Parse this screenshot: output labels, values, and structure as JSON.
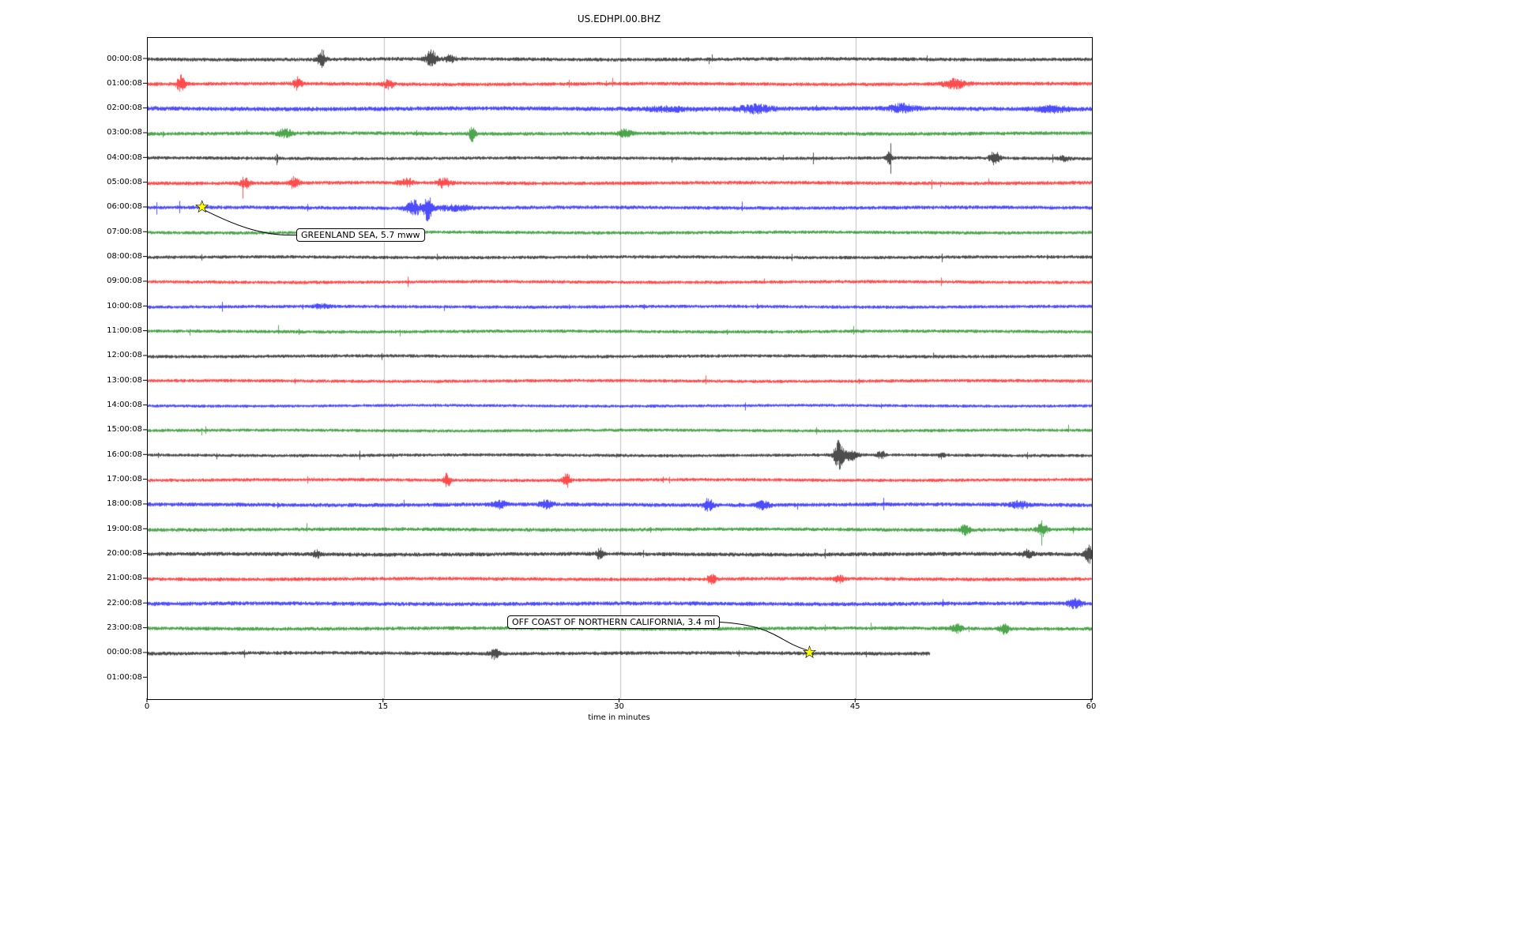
{
  "title": "US.EDHPI.00.BHZ",
  "axes": {
    "xlabel": "time in minutes",
    "x_ticks": [
      0,
      15,
      30,
      45,
      60
    ],
    "grid_minutes": [
      15,
      30,
      45
    ]
  },
  "colors": {
    "trace_black": "#000000",
    "trace_red": "#ff0000",
    "trace_blue": "#0000ff",
    "trace_green": "#008000",
    "grid": "#b0b0b0",
    "event_marker": "#ffff00",
    "background": "#ffffff"
  },
  "chart_data": {
    "type": "line",
    "title": "US.EDHPI.00.BHZ",
    "xlabel": "time in minutes",
    "x_range_minutes": [
      0,
      60
    ],
    "x_ticks": [
      0,
      15,
      30,
      45,
      60
    ],
    "grid_minutes": [
      15,
      30,
      45
    ],
    "row_spacing": "1 hour per row",
    "rows": [
      {
        "label": "00:00:08",
        "color": "#000000",
        "amp": 2.2,
        "bursts": [
          {
            "m": 11.0,
            "a": 6,
            "w": 0.3
          },
          {
            "m": 18.0,
            "a": 9,
            "w": 0.35
          },
          {
            "m": 19.2,
            "a": 4,
            "w": 0.3
          }
        ]
      },
      {
        "label": "01:00:08",
        "color": "#ff0000",
        "amp": 2.2,
        "bursts": [
          {
            "m": 2.1,
            "a": 10,
            "w": 0.25
          },
          {
            "m": 9.5,
            "a": 7,
            "w": 0.25
          },
          {
            "m": 15.3,
            "a": 5,
            "w": 0.3
          },
          {
            "m": 51.3,
            "a": 5,
            "w": 0.7
          }
        ]
      },
      {
        "label": "02:00:08",
        "color": "#0000ff",
        "amp": 2.6,
        "bursts": [
          {
            "m": 33.0,
            "a": 2,
            "w": 1.5
          },
          {
            "m": 38.6,
            "a": 4,
            "w": 1.0
          },
          {
            "m": 47.9,
            "a": 4,
            "w": 0.8
          },
          {
            "m": 57.4,
            "a": 3,
            "w": 1.0
          }
        ]
      },
      {
        "label": "03:00:08",
        "color": "#008000",
        "amp": 2.2,
        "bursts": [
          {
            "m": 8.7,
            "a": 4,
            "w": 0.5
          },
          {
            "m": 20.6,
            "a": 8,
            "w": 0.2
          },
          {
            "m": 30.3,
            "a": 4,
            "w": 0.4
          }
        ]
      },
      {
        "label": "04:00:08",
        "color": "#000000",
        "amp": 2.0,
        "bursts": [
          {
            "m": 47.1,
            "a": 7,
            "w": 0.15
          },
          {
            "m": 53.8,
            "a": 8,
            "w": 0.3
          },
          {
            "m": 58.2,
            "a": 3,
            "w": 0.3
          }
        ]
      },
      {
        "label": "05:00:08",
        "color": "#ff0000",
        "amp": 2.2,
        "bursts": [
          {
            "m": 6.2,
            "a": 5,
            "w": 0.3
          },
          {
            "m": 9.3,
            "a": 6,
            "w": 0.3
          },
          {
            "m": 16.4,
            "a": 5,
            "w": 0.4
          },
          {
            "m": 18.8,
            "a": 5,
            "w": 0.4
          }
        ]
      },
      {
        "label": "06:00:08",
        "color": "#0000ff",
        "amp": 2.2,
        "bursts": [
          {
            "m": 16.9,
            "a": 8,
            "w": 0.5
          },
          {
            "m": 17.8,
            "a": 14,
            "w": 0.25
          },
          {
            "m": 19.5,
            "a": 3,
            "w": 1.0
          }
        ]
      },
      {
        "label": "07:00:08",
        "color": "#008000",
        "amp": 2.0,
        "bursts": []
      },
      {
        "label": "08:00:08",
        "color": "#000000",
        "amp": 2.0,
        "bursts": []
      },
      {
        "label": "09:00:08",
        "color": "#ff0000",
        "amp": 2.0,
        "bursts": []
      },
      {
        "label": "10:00:08",
        "color": "#0000ff",
        "amp": 2.0,
        "bursts": [
          {
            "m": 11.0,
            "a": 2,
            "w": 0.5
          }
        ]
      },
      {
        "label": "11:00:08",
        "color": "#008000",
        "amp": 2.0,
        "bursts": []
      },
      {
        "label": "12:00:08",
        "color": "#000000",
        "amp": 2.0,
        "bursts": []
      },
      {
        "label": "13:00:08",
        "color": "#ff0000",
        "amp": 2.0,
        "bursts": []
      },
      {
        "label": "14:00:08",
        "color": "#0000ff",
        "amp": 1.8,
        "bursts": []
      },
      {
        "label": "15:00:08",
        "color": "#008000",
        "amp": 1.9,
        "bursts": []
      },
      {
        "label": "16:00:08",
        "color": "#000000",
        "amp": 1.9,
        "bursts": [
          {
            "m": 43.9,
            "a": 16,
            "w": 0.3
          },
          {
            "m": 44.7,
            "a": 6,
            "w": 0.4
          },
          {
            "m": 46.6,
            "a": 4,
            "w": 0.25
          },
          {
            "m": 50.4,
            "a": 3,
            "w": 0.2
          }
        ]
      },
      {
        "label": "17:00:08",
        "color": "#ff0000",
        "amp": 2.0,
        "bursts": [
          {
            "m": 19.0,
            "a": 8,
            "w": 0.2
          },
          {
            "m": 26.6,
            "a": 7,
            "w": 0.25
          }
        ]
      },
      {
        "label": "18:00:08",
        "color": "#0000ff",
        "amp": 2.4,
        "bursts": [
          {
            "m": 22.3,
            "a": 4,
            "w": 0.5
          },
          {
            "m": 25.3,
            "a": 4,
            "w": 0.4
          },
          {
            "m": 35.6,
            "a": 7,
            "w": 0.3
          },
          {
            "m": 39.1,
            "a": 4,
            "w": 0.4
          },
          {
            "m": 55.4,
            "a": 4,
            "w": 0.5
          }
        ]
      },
      {
        "label": "19:00:08",
        "color": "#008000",
        "amp": 2.2,
        "bursts": [
          {
            "m": 51.9,
            "a": 5,
            "w": 0.3
          },
          {
            "m": 56.8,
            "a": 7,
            "w": 0.3
          }
        ]
      },
      {
        "label": "20:00:08",
        "color": "#000000",
        "amp": 2.4,
        "bursts": [
          {
            "m": 10.7,
            "a": 4,
            "w": 0.2
          },
          {
            "m": 28.7,
            "a": 6,
            "w": 0.2
          },
          {
            "m": 55.9,
            "a": 4,
            "w": 0.3
          },
          {
            "m": 59.8,
            "a": 10,
            "w": 0.25
          }
        ]
      },
      {
        "label": "21:00:08",
        "color": "#ff0000",
        "amp": 2.2,
        "bursts": [
          {
            "m": 35.8,
            "a": 6,
            "w": 0.25
          },
          {
            "m": 43.9,
            "a": 4,
            "w": 0.3
          }
        ]
      },
      {
        "label": "22:00:08",
        "color": "#0000ff",
        "amp": 2.4,
        "bursts": [
          {
            "m": 58.9,
            "a": 5,
            "w": 0.4
          }
        ]
      },
      {
        "label": "23:00:08",
        "color": "#008000",
        "amp": 2.2,
        "bursts": [
          {
            "m": 51.4,
            "a": 4,
            "w": 0.4
          },
          {
            "m": 54.4,
            "a": 5,
            "w": 0.3
          }
        ]
      },
      {
        "label": "00:00:08",
        "color": "#000000",
        "amp": 2.2,
        "end_minute": 49.7,
        "bursts": [
          {
            "m": 22.0,
            "a": 5,
            "w": 0.3
          }
        ]
      },
      {
        "label": "01:00:08",
        "color": "#000000",
        "amp": 0,
        "has_data": false,
        "bursts": []
      }
    ],
    "events": [
      {
        "text": "GREENLAND SEA, 5.7 mww",
        "row_index": 6,
        "row_label": "06:00:08",
        "minute": 3.5
      },
      {
        "text": "OFF COAST OF NORTHERN CALIFORNIA, 3.4 ml",
        "row_index": 24,
        "row_label": "00:00:08",
        "minute": 42.1
      }
    ]
  }
}
